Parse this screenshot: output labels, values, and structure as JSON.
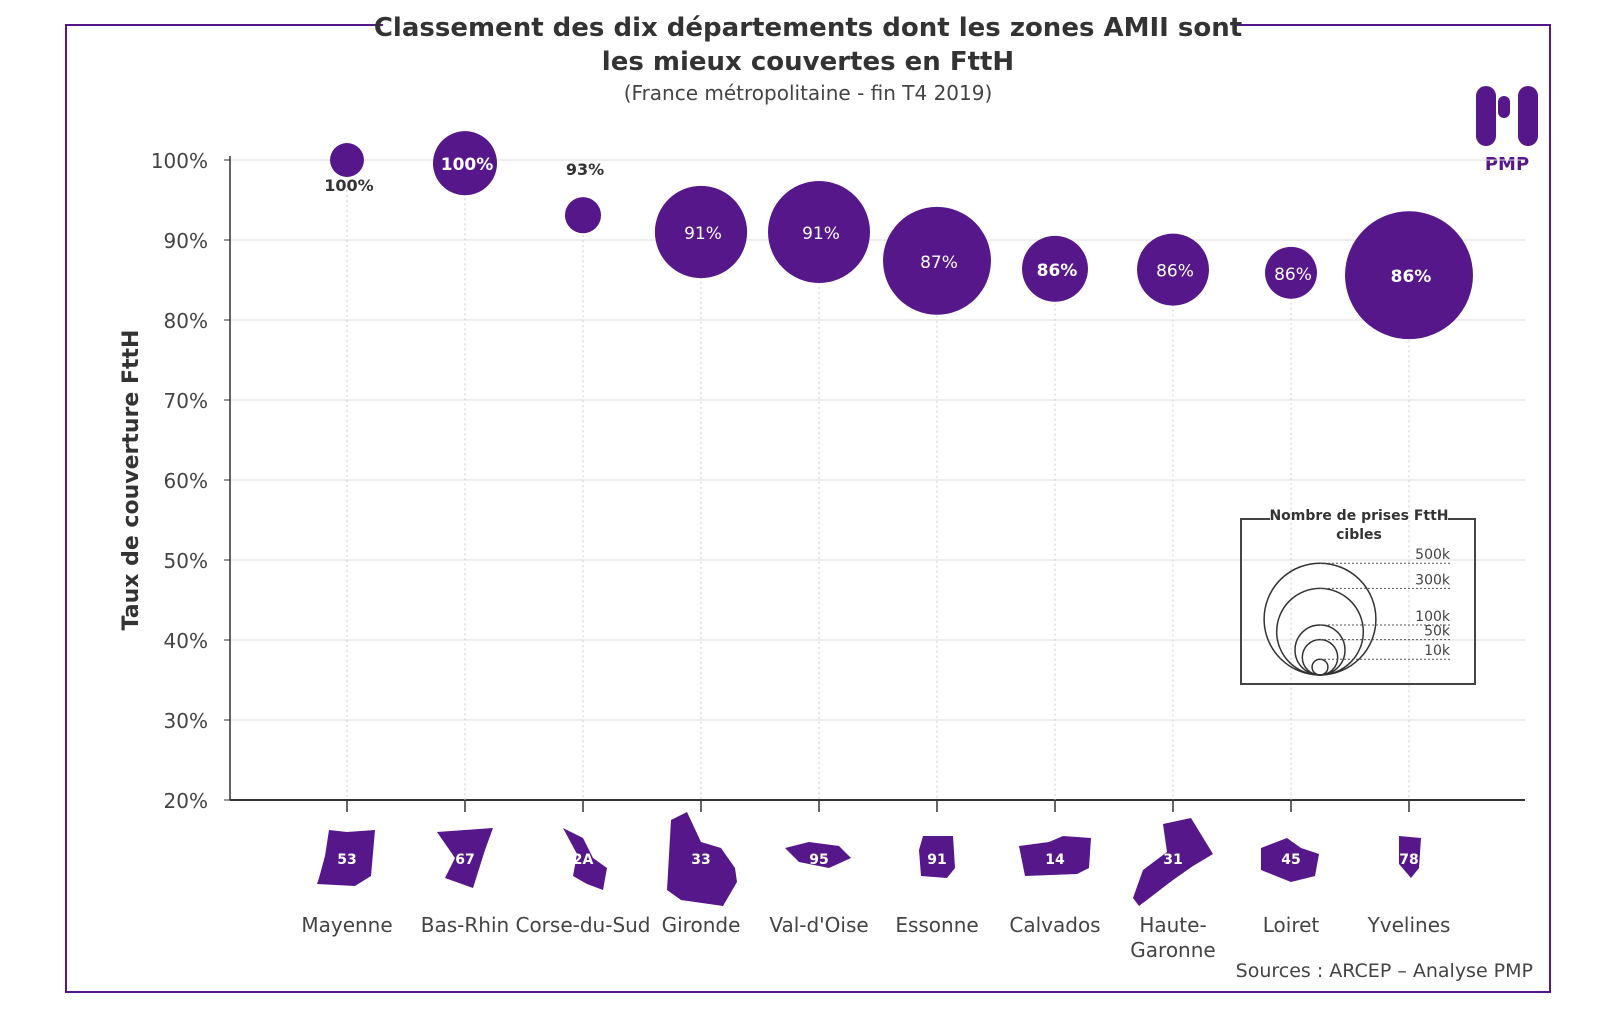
{
  "chart_data": {
    "type": "bubble",
    "title_line1": "Classement des dix départements dont les zones AMII sont",
    "title_line2": "les mieux couvertes en FttH",
    "subtitle": "(France métropolitaine - fin T4 2019)",
    "ylabel": "Taux de couverture FttH",
    "ylim": [
      20,
      100
    ],
    "yticks": [
      "20%",
      "30%",
      "40%",
      "50%",
      "60%",
      "70%",
      "80%",
      "90%",
      "100%"
    ],
    "grid": true,
    "color": "#55178a",
    "points": [
      {
        "dept": "Mayenne",
        "code": "53",
        "y": 100,
        "label": "100%",
        "size_k": 46,
        "label_pos": "below",
        "bold": true
      },
      {
        "dept": "Bas-Rhin",
        "code": "67",
        "y": 99.6,
        "label": "100%",
        "size_k": 164,
        "label_pos": "inside",
        "bold": true
      },
      {
        "dept": "Corse-du-Sud",
        "code": "2A",
        "y": 93.1,
        "label": "93%",
        "size_k": 52,
        "label_pos": "above",
        "bold": true
      },
      {
        "dept": "Gironde",
        "code": "33",
        "y": 91,
        "label": "91%",
        "size_k": 340,
        "label_pos": "inside",
        "bold": false
      },
      {
        "dept": "Val-d'Oise",
        "code": "95",
        "y": 91,
        "label": "91%",
        "size_k": 416,
        "label_pos": "inside",
        "bold": false
      },
      {
        "dept": "Essonne",
        "code": "91",
        "y": 87.4,
        "label": "87%",
        "size_k": 466,
        "label_pos": "inside",
        "bold": false
      },
      {
        "dept": "Calvados",
        "code": "14",
        "y": 86.4,
        "label": "86%",
        "size_k": 174,
        "label_pos": "inside",
        "bold": true
      },
      {
        "dept": "Haute-Garonne",
        "code": "31",
        "y": 86.3,
        "label": "86%",
        "size_k": 207,
        "label_pos": "inside",
        "bold": false
      },
      {
        "dept": "Loiret",
        "code": "45",
        "y": 85.9,
        "label": "86%",
        "size_k": 108,
        "label_pos": "inside",
        "bold": false
      },
      {
        "dept": "Yvelines",
        "code": "78",
        "y": 85.6,
        "label": "86%",
        "size_k": 655,
        "label_pos": "inside",
        "bold": true
      }
    ],
    "size_legend": {
      "title_line1": "Nombre de prises FttH",
      "title_line2": "cibles",
      "entries": [
        {
          "label": "500k",
          "k": 500
        },
        {
          "label": "300k",
          "k": 300
        },
        {
          "label": "100k",
          "k": 100
        },
        {
          "label": "50k",
          "k": 50
        },
        {
          "label": "10k",
          "k": 10
        }
      ],
      "placement": "bottom-right"
    },
    "source": "Sources : ARCEP – Analyse PMP"
  },
  "logo": {
    "text": "PMP"
  }
}
